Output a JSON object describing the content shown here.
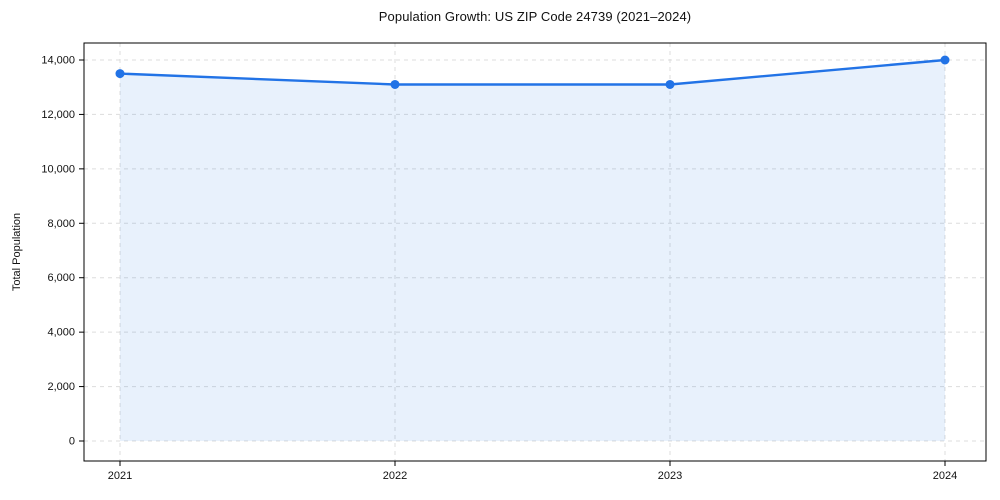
{
  "chart_data": {
    "type": "area",
    "title": "Population Growth: US ZIP Code 24739 (2021–2024)",
    "xlabel": "",
    "ylabel": "Total Population",
    "categories": [
      "2021",
      "2022",
      "2023",
      "2024"
    ],
    "series": [
      {
        "name": "Total Population",
        "values": [
          13500,
          13100,
          13100,
          14000
        ]
      }
    ],
    "yticks": [
      0,
      2000,
      4000,
      6000,
      8000,
      10000,
      12000,
      14000
    ],
    "ytick_labels": [
      "0",
      "2,000",
      "4,000",
      "6,000",
      "8,000",
      "10,000",
      "12,000",
      "14,000"
    ],
    "ylim": [
      0,
      14000
    ],
    "grid": true,
    "grid_style": "dashed",
    "legend_position": "none",
    "marker": "circle",
    "colors": {
      "line": "#2273e6",
      "marker": "#2273e6",
      "fill": "rgba(34,115,230,0.10)",
      "grid": "#d9d9d9",
      "spine": "#000000",
      "text": "#111111",
      "background": "#ffffff"
    }
  }
}
